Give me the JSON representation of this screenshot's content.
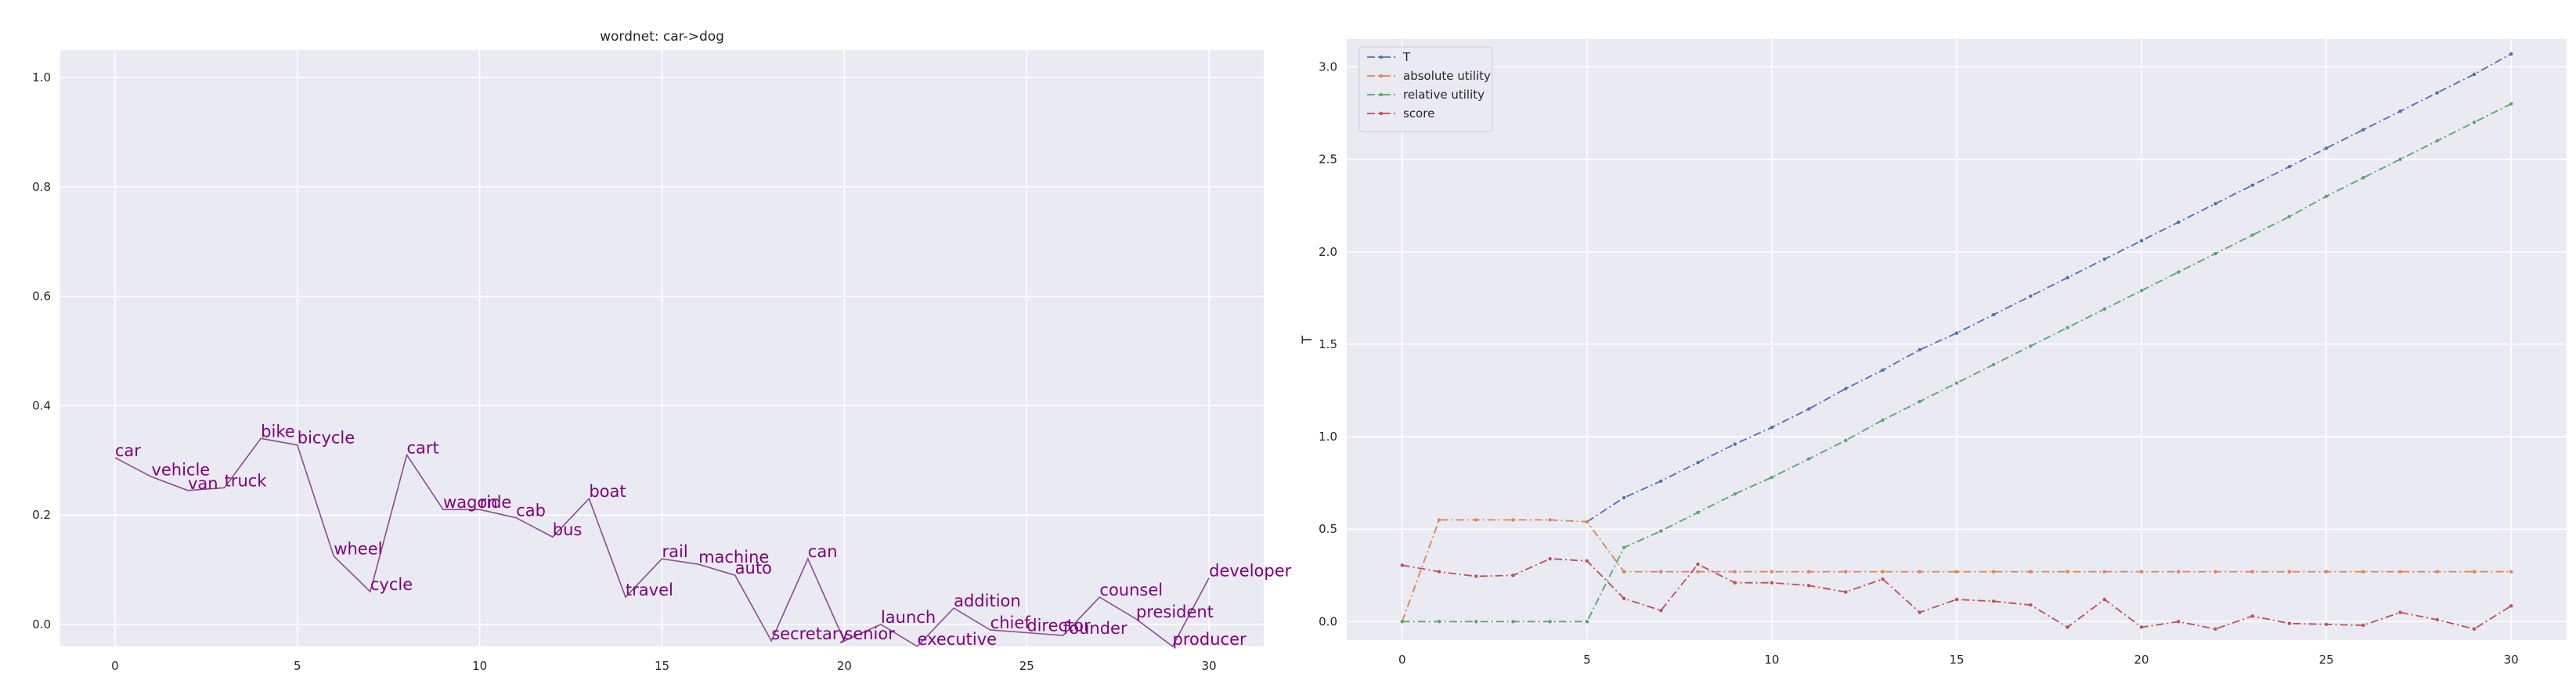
{
  "chart_data": [
    {
      "type": "line",
      "title": "wordnet: car->dog",
      "xlabel": "",
      "ylabel": "",
      "xlim": [
        -1.5,
        31.5
      ],
      "ylim": [
        -0.04,
        1.05
      ],
      "xticks": [
        0,
        5,
        10,
        15,
        20,
        25,
        30
      ],
      "xtick_labels": [
        "0",
        "5",
        "10",
        "15",
        "20",
        "25",
        "30"
      ],
      "yticks": [
        0.0,
        0.2,
        0.4,
        0.6,
        0.8,
        1.0
      ],
      "ytick_labels": [
        "0.0",
        "0.2",
        "0.4",
        "0.6",
        "0.8",
        "1.0"
      ],
      "grid": true,
      "line_color": "#8B4C8C",
      "label_color": "#800080",
      "x": [
        0,
        1,
        2,
        3,
        4,
        5,
        6,
        7,
        8,
        9,
        10,
        11,
        12,
        13,
        14,
        15,
        16,
        17,
        18,
        19,
        20,
        21,
        22,
        23,
        24,
        25,
        26,
        27,
        28,
        29,
        30
      ],
      "words": [
        "car",
        "vehicle",
        "van",
        "truck",
        "bike",
        "bicycle",
        "wheel",
        "cycle",
        "cart",
        "wagon",
        "ride",
        "cab",
        "bus",
        "boat",
        "travel",
        "rail",
        "machine",
        "auto",
        "secretary",
        "can",
        "senior",
        "launch",
        "executive",
        "addition",
        "chief",
        "director",
        "founder",
        "counsel",
        "president",
        "producer",
        "developer"
      ],
      "values": [
        0.305,
        0.27,
        0.245,
        0.25,
        0.34,
        0.328,
        0.125,
        0.06,
        0.31,
        0.21,
        0.21,
        0.195,
        0.16,
        0.23,
        0.05,
        0.12,
        0.11,
        0.09,
        -0.03,
        0.12,
        -0.03,
        0.0,
        -0.04,
        0.03,
        -0.01,
        -0.015,
        -0.02,
        0.05,
        0.01,
        -0.04,
        0.085
      ]
    },
    {
      "type": "line",
      "title": "",
      "xlabel": "",
      "ylabel": "T",
      "xlim": [
        -1.5,
        31.5
      ],
      "ylim": [
        -0.1,
        3.15
      ],
      "xticks": [
        0,
        5,
        10,
        15,
        20,
        25,
        30
      ],
      "xtick_labels": [
        "0",
        "5",
        "10",
        "15",
        "20",
        "25",
        "30"
      ],
      "yticks": [
        0.0,
        0.5,
        1.0,
        1.5,
        2.0,
        2.5,
        3.0
      ],
      "ytick_labels": [
        "0.0",
        "0.5",
        "1.0",
        "1.5",
        "2.0",
        "2.5",
        "3.0"
      ],
      "grid": true,
      "legend_position": "top-left",
      "x": [
        0,
        1,
        2,
        3,
        4,
        5,
        6,
        7,
        8,
        9,
        10,
        11,
        12,
        13,
        14,
        15,
        16,
        17,
        18,
        19,
        20,
        21,
        22,
        23,
        24,
        25,
        26,
        27,
        28,
        29,
        30
      ],
      "series": [
        {
          "name": "T",
          "color": "#4C72B0",
          "values": [
            null,
            null,
            null,
            null,
            null,
            0.54,
            0.67,
            0.76,
            0.86,
            0.96,
            1.05,
            1.15,
            1.26,
            1.36,
            1.47,
            1.56,
            1.66,
            1.76,
            1.86,
            1.96,
            2.06,
            2.16,
            2.26,
            2.36,
            2.46,
            2.56,
            2.66,
            2.76,
            2.86,
            2.96,
            3.07
          ]
        },
        {
          "name": "absolute utility",
          "color": "#DD8452",
          "values": [
            0.0,
            0.55,
            0.55,
            0.55,
            0.55,
            0.54,
            0.27,
            0.27,
            0.27,
            0.27,
            0.27,
            0.27,
            0.27,
            0.27,
            0.27,
            0.27,
            0.27,
            0.27,
            0.27,
            0.27,
            0.27,
            0.27,
            0.27,
            0.27,
            0.27,
            0.27,
            0.27,
            0.27,
            0.27,
            0.27,
            0.27
          ]
        },
        {
          "name": "relative utility",
          "color": "#55A868",
          "values": [
            0.0,
            0.0,
            0.0,
            0.0,
            0.0,
            0.0,
            0.4,
            0.49,
            0.59,
            0.69,
            0.78,
            0.88,
            0.98,
            1.09,
            1.19,
            1.29,
            1.39,
            1.49,
            1.59,
            1.69,
            1.79,
            1.89,
            1.99,
            2.09,
            2.19,
            2.3,
            2.4,
            2.5,
            2.6,
            2.7,
            2.8
          ]
        },
        {
          "name": "score",
          "color": "#C44E52",
          "values": [
            0.305,
            0.27,
            0.245,
            0.25,
            0.34,
            0.328,
            0.125,
            0.06,
            0.31,
            0.21,
            0.21,
            0.195,
            0.16,
            0.23,
            0.05,
            0.12,
            0.11,
            0.09,
            -0.03,
            0.12,
            -0.03,
            0.0,
            -0.04,
            0.03,
            -0.01,
            -0.015,
            -0.02,
            0.05,
            0.01,
            -0.04,
            0.085
          ]
        }
      ]
    }
  ]
}
